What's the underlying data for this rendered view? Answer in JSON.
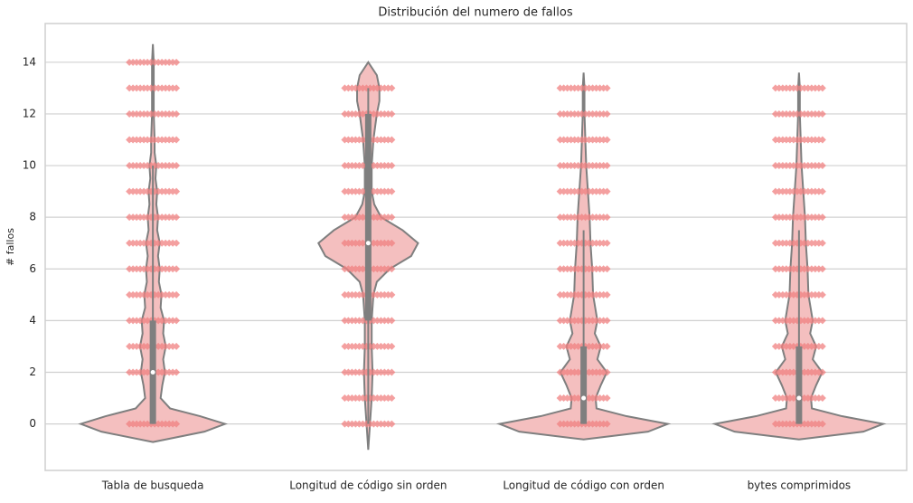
{
  "chart_data": {
    "type": "violin",
    "title": "Distribución del numero de fallos",
    "ylabel": "# fallos",
    "categories": [
      "Tabla de busqueda",
      "Longitud de código sin orden",
      "Longitud de código con orden",
      "bytes comprimidos"
    ],
    "ylim": [
      -1.8,
      15.5
    ],
    "yticks": [
      0,
      2,
      4,
      6,
      8,
      10,
      12,
      14
    ],
    "grid": true,
    "color": "#f4bfbf",
    "edge_color": "#7f7f7f",
    "point_color": "#f08080",
    "violins": [
      {
        "y": [
          -0.7,
          -0.3,
          0,
          0.3,
          0.6,
          1,
          1.5,
          2,
          2.5,
          3,
          3.5,
          4,
          4.5,
          5,
          5.5,
          6,
          6.5,
          7,
          7.5,
          8,
          8.5,
          9,
          9.5,
          10,
          10.5,
          11,
          12,
          13,
          14,
          14.7
        ],
        "density": [
          0,
          0.6,
          0.84,
          0.55,
          0.2,
          0.09,
          0.11,
          0.14,
          0.12,
          0.15,
          0.12,
          0.13,
          0.09,
          0.1,
          0.07,
          0.08,
          0.06,
          0.08,
          0.05,
          0.06,
          0.04,
          0.05,
          0.03,
          0.04,
          0.02,
          0.02,
          0.01,
          0.01,
          0.01,
          0
        ],
        "q1": 0,
        "median": 2,
        "q3": 4,
        "whisker_low": 0,
        "whisker_high": 10,
        "points": [
          0,
          2,
          3,
          4,
          5,
          6,
          7,
          8,
          9,
          10,
          11,
          12,
          13,
          14
        ]
      },
      {
        "y": [
          -1,
          0,
          1,
          2,
          3,
          4,
          4.5,
          5,
          5.5,
          6,
          6.5,
          7,
          7.5,
          8,
          8.5,
          9,
          10,
          11,
          12,
          12.5,
          13,
          13.5,
          14
        ],
        "density": [
          0,
          0.02,
          0.04,
          0.05,
          0.04,
          0.04,
          0.05,
          0.06,
          0.1,
          0.25,
          0.5,
          0.58,
          0.4,
          0.15,
          0.07,
          0.04,
          0.04,
          0.06,
          0.1,
          0.13,
          0.13,
          0.1,
          0
        ],
        "q1": 4,
        "median": 7,
        "q3": 12,
        "whisker_low": 0,
        "whisker_high": 13,
        "points": [
          0,
          1,
          2,
          3,
          4,
          5,
          6,
          7,
          8,
          9,
          10,
          11,
          12,
          13
        ]
      },
      {
        "y": [
          -0.6,
          -0.3,
          0,
          0.3,
          0.6,
          1,
          1.5,
          2,
          2.5,
          3,
          3.5,
          4,
          5,
          6,
          7,
          8,
          9,
          10,
          11,
          12,
          13,
          13.6
        ],
        "density": [
          0,
          0.75,
          0.98,
          0.5,
          0.15,
          0.14,
          0.2,
          0.27,
          0.16,
          0.2,
          0.13,
          0.16,
          0.11,
          0.1,
          0.08,
          0.07,
          0.05,
          0.03,
          0.02,
          0.01,
          0.01,
          0
        ],
        "q1": 0,
        "median": 1,
        "q3": 3,
        "whisker_low": 0,
        "whisker_high": 7.5,
        "points": [
          0,
          1,
          2,
          3,
          4,
          5,
          6,
          7,
          8,
          9,
          10,
          11,
          12,
          13
        ]
      },
      {
        "y": [
          -0.6,
          -0.3,
          0,
          0.3,
          0.6,
          1,
          1.5,
          2,
          2.5,
          3,
          3.5,
          4,
          5,
          6,
          7,
          8,
          9,
          10,
          11,
          12,
          13,
          13.6
        ],
        "density": [
          0,
          0.75,
          0.98,
          0.5,
          0.15,
          0.14,
          0.2,
          0.27,
          0.16,
          0.2,
          0.13,
          0.16,
          0.11,
          0.1,
          0.08,
          0.07,
          0.05,
          0.03,
          0.02,
          0.01,
          0.01,
          0
        ],
        "q1": 0,
        "median": 1,
        "q3": 3,
        "whisker_low": 0,
        "whisker_high": 7.5,
        "points": [
          0,
          1,
          2,
          3,
          4,
          5,
          6,
          7,
          8,
          9,
          10,
          11,
          12,
          13
        ]
      }
    ]
  }
}
